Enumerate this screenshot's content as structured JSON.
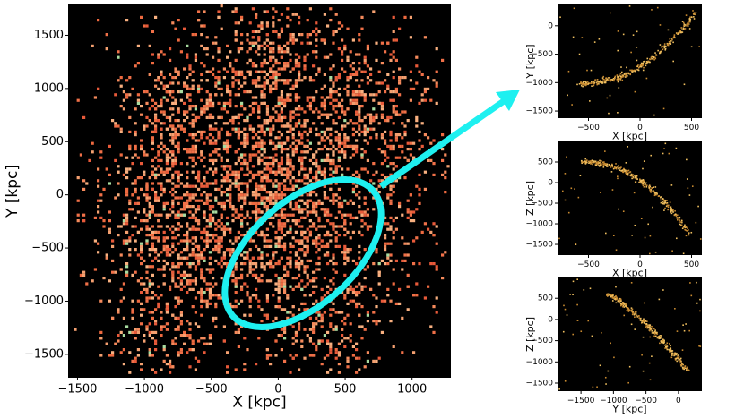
{
  "chart_data": [
    {
      "type": "heatmap",
      "xlabel": "X [kpc]",
      "ylabel": "Y [kpc]",
      "xlim": [
        -1570,
        1290
      ],
      "ylim": [
        -1720,
        1790
      ],
      "xticks": [
        {
          "value": -1500,
          "label": "−1500"
        },
        {
          "value": -1000,
          "label": "−1000"
        },
        {
          "value": -500,
          "label": "−500"
        },
        0,
        500,
        1000
      ],
      "yticks": [
        {
          "value": -1500,
          "label": "−1500"
        },
        {
          "value": -1000,
          "label": "−1000"
        },
        {
          "value": -500,
          "label": "−500"
        },
        0,
        500,
        1000,
        1500
      ]
    },
    {
      "type": "heatmap",
      "xlabel": "X [kpc]",
      "ylabel": "Y [kpc]",
      "xlim": [
        -800,
        600
      ],
      "ylim": [
        -1625,
        375
      ],
      "xticks": [
        {
          "value": -500,
          "label": "−500"
        },
        0,
        500
      ],
      "yticks": [
        {
          "value": -1500,
          "label": "−1500"
        },
        {
          "value": -1000,
          "label": "−1000"
        },
        {
          "value": -500,
          "label": "−500"
        },
        0
      ]
    },
    {
      "type": "heatmap",
      "xlabel": "X [kpc]",
      "ylabel": "Z [kpc]",
      "xlim": [
        -800,
        600
      ],
      "ylim": [
        -1760,
        1000
      ],
      "xticks": [
        {
          "value": -500,
          "label": "−500"
        },
        0,
        500
      ],
      "yticks": [
        {
          "value": -1500,
          "label": "−1500"
        },
        {
          "value": -1000,
          "label": "−1000"
        },
        {
          "value": -500,
          "label": "−500"
        },
        0,
        500
      ]
    },
    {
      "type": "heatmap",
      "xlabel": "Y [kpc]",
      "ylabel": "Z [kpc]",
      "xlim": [
        -1860,
        360
      ],
      "ylim": [
        -1690,
        990
      ],
      "xticks": [
        {
          "value": -1500,
          "label": "−1500"
        },
        {
          "value": -1000,
          "label": "−1000"
        },
        {
          "value": -500,
          "label": "−500"
        },
        0
      ],
      "yticks": [
        {
          "value": -1500,
          "label": "−1500"
        },
        {
          "value": -1000,
          "label": "−1000"
        },
        {
          "value": -500,
          "label": "−500"
        },
        0,
        500
      ]
    }
  ]
}
